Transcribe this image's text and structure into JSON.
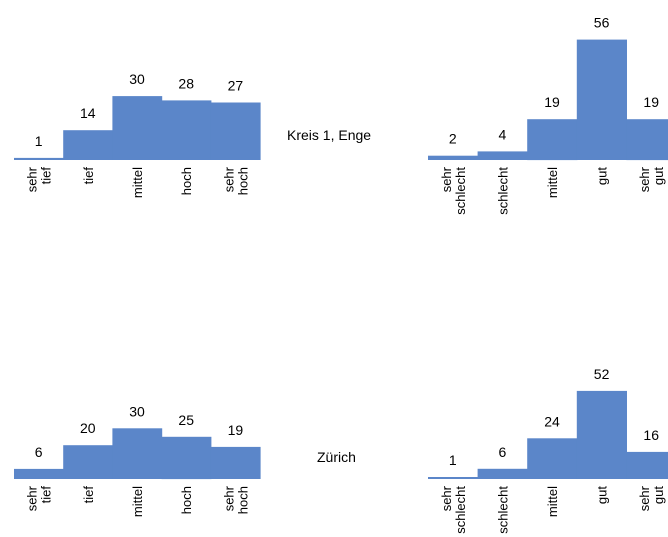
{
  "colors": {
    "bar": "#5B86C9",
    "text": "#000000",
    "background": "#ffffff"
  },
  "row_labels": [
    "Kreis 1, Enge",
    "Zürich"
  ],
  "chart_data": [
    {
      "type": "bar",
      "group": "Kreis 1, Enge",
      "categories": [
        "sehr tief",
        "tief",
        "mittel",
        "hoch",
        "sehr hoch"
      ],
      "values": [
        1,
        14,
        30,
        28,
        27
      ],
      "ylim": [
        0,
        60
      ],
      "grid": false
    },
    {
      "type": "bar",
      "group": "Kreis 1, Enge",
      "categories": [
        "sehr schlecht",
        "schlecht",
        "mittel",
        "gut",
        "sehr gut"
      ],
      "values": [
        2,
        4,
        19,
        56,
        19
      ],
      "ylim": [
        0,
        60
      ],
      "grid": false
    },
    {
      "type": "bar",
      "group": "Zürich",
      "categories": [
        "sehr tief",
        "tief",
        "mittel",
        "hoch",
        "sehr hoch"
      ],
      "values": [
        6,
        20,
        30,
        25,
        19
      ],
      "ylim": [
        0,
        60
      ],
      "grid": false
    },
    {
      "type": "bar",
      "group": "Zürich",
      "categories": [
        "sehr schlecht",
        "schlecht",
        "mittel",
        "gut",
        "sehr gut"
      ],
      "values": [
        1,
        6,
        24,
        52,
        16
      ],
      "ylim": [
        0,
        60
      ],
      "grid": false
    }
  ]
}
